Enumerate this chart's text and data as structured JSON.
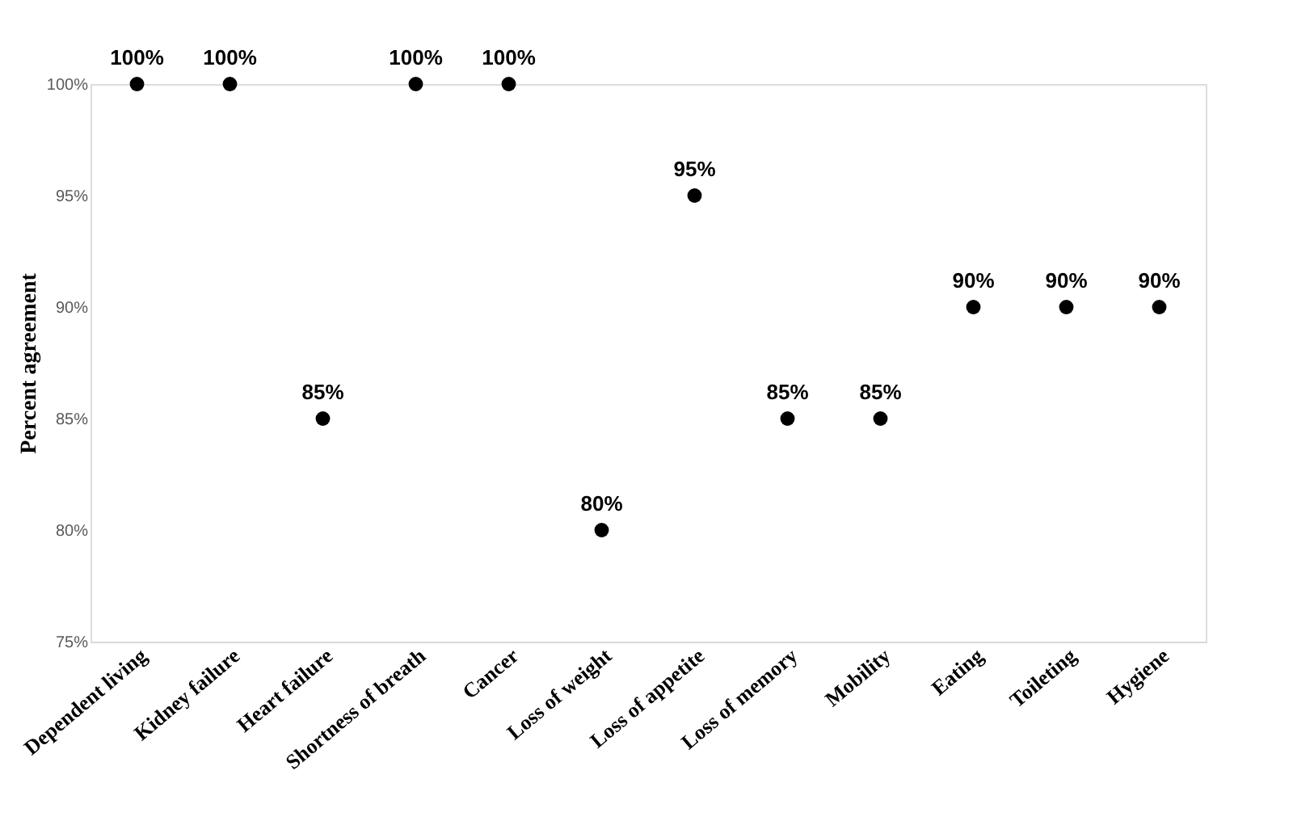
{
  "chart_data": {
    "type": "scatter",
    "ylabel": "Percent agreement",
    "categories": [
      "Dependent living",
      "Kidney failure",
      "Heart failure",
      "Shortness of breath",
      "Cancer",
      "Loss of weight",
      "Loss of appetite",
      "Loss of memory",
      "Mobility",
      "Eating",
      "Toileting",
      "Hygiene"
    ],
    "series": [
      {
        "color": "#000000",
        "values": [
          100,
          100,
          85,
          100,
          100,
          80,
          95,
          85,
          85,
          90,
          90,
          90
        ],
        "value_labels": [
          "100%",
          "100%",
          "85%",
          "100%",
          "100%",
          "80%",
          "95%",
          "85%",
          "85%",
          "90%",
          "90%",
          "90%"
        ]
      }
    ],
    "ylim": [
      75,
      100
    ],
    "yticks": [
      {
        "value": 75,
        "label": "75%"
      },
      {
        "value": 80,
        "label": "80%"
      },
      {
        "value": 85,
        "label": "85%"
      },
      {
        "value": 90,
        "label": "90%"
      },
      {
        "value": 95,
        "label": "95%"
      },
      {
        "value": 100,
        "label": "100%"
      }
    ],
    "grid": false,
    "marker": "circle"
  }
}
